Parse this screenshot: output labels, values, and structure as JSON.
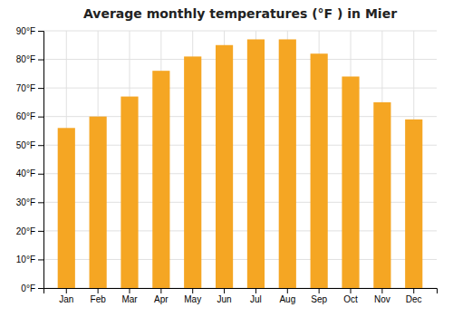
{
  "chart_data": {
    "type": "bar",
    "title": "Average monthly temperatures (°F ) in Mier",
    "categories": [
      "Jan",
      "Feb",
      "Mar",
      "Apr",
      "May",
      "Jun",
      "Jul",
      "Aug",
      "Sep",
      "Oct",
      "Nov",
      "Dec"
    ],
    "values": [
      56,
      60,
      67,
      76,
      81,
      85,
      87,
      87,
      82,
      74,
      65,
      59
    ],
    "color": "#F5A623",
    "ylim": [
      0,
      90
    ],
    "yticks": [
      {
        "value": 0,
        "label": "0°F"
      },
      {
        "value": 10,
        "label": "10°F"
      },
      {
        "value": 20,
        "label": "20°F"
      },
      {
        "value": 30,
        "label": "30°F"
      },
      {
        "value": 40,
        "label": "40°F"
      },
      {
        "value": 50,
        "label": "50°F"
      },
      {
        "value": 60,
        "label": "60°F"
      },
      {
        "value": 70,
        "label": "70°F"
      },
      {
        "value": 80,
        "label": "80°F"
      },
      {
        "value": 90,
        "label": "90°F"
      }
    ],
    "grid": true
  }
}
